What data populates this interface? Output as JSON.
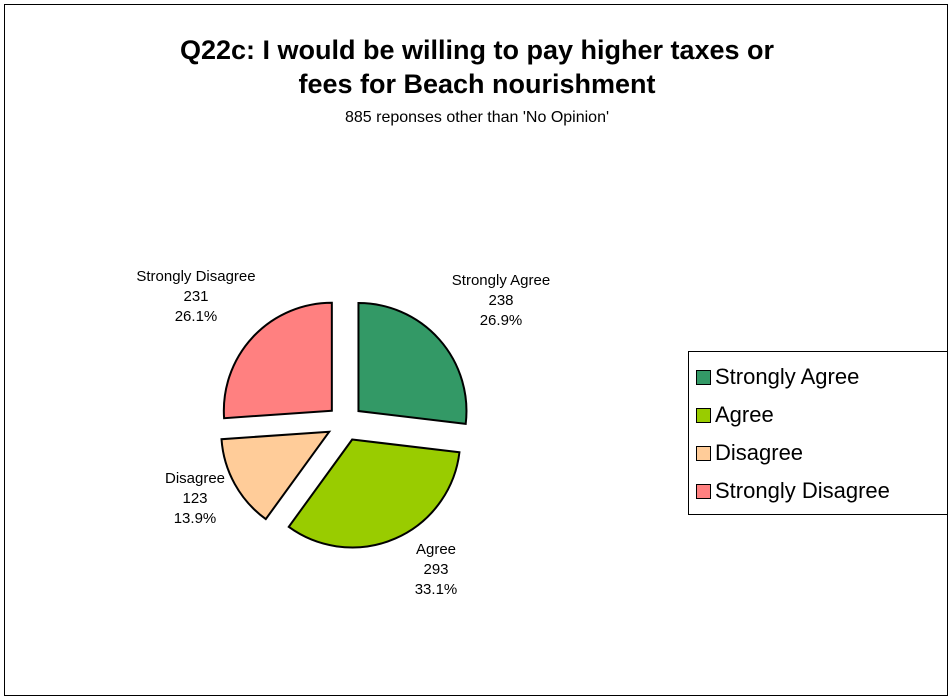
{
  "chart_data": {
    "type": "pie",
    "title_lines": [
      "Q22c: I would be willing to pay higher taxes or",
      "fees for Beach nourishment"
    ],
    "subtitle": "885 reponses other than 'No Opinion'",
    "slices": [
      {
        "name": "Strongly Agree",
        "value": 238,
        "percent": "26.9%",
        "color": "#339966"
      },
      {
        "name": "Agree",
        "value": 293,
        "percent": "33.1%",
        "color": "#99cc00"
      },
      {
        "name": "Disagree",
        "value": 123,
        "percent": "13.9%",
        "color": "#ffcc99"
      },
      {
        "name": "Strongly Disagree",
        "value": 231,
        "percent": "26.1%",
        "color": "#ff8080"
      }
    ],
    "exploded": true,
    "legend_position": "right"
  }
}
